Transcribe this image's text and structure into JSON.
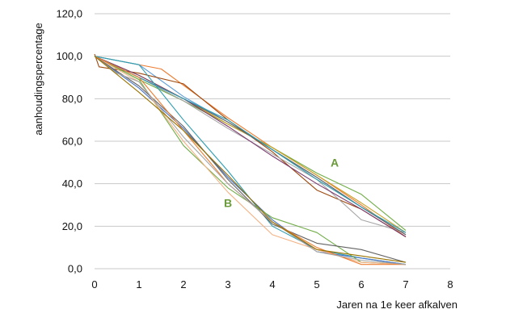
{
  "chart_data": {
    "type": "line",
    "xlabel": "Jaren na 1e keer afkalven",
    "ylabel": "aanhoudingspercentage",
    "xlim": [
      0,
      8
    ],
    "ylim": [
      0,
      120
    ],
    "x_ticks": [
      "0",
      "1",
      "2",
      "3",
      "4",
      "5",
      "6",
      "7",
      "8"
    ],
    "y_ticks": [
      "0,0",
      "20,0",
      "40,0",
      "60,0",
      "80,0",
      "100,0",
      "120,0"
    ],
    "grid": true,
    "legend": "none",
    "colors": {
      "label": "#6a9a3a",
      "palette": [
        "#4472c4",
        "#ed7d31",
        "#a5a5a5",
        "#c9a227",
        "#5b9bd5",
        "#70ad47",
        "#264478",
        "#9e480e",
        "#636363",
        "#997300",
        "#2f9eb0",
        "#7b3a6e",
        "#f4b183",
        "#843c0c"
      ]
    },
    "annotations": [
      {
        "text": "A",
        "x": 5.4,
        "y": 48
      },
      {
        "text": "B",
        "x": 3.0,
        "y": 29
      }
    ],
    "series": [
      {
        "group": "A",
        "color": "#ed7d31",
        "x": [
          0,
          1.5,
          3,
          4,
          5,
          6,
          7
        ],
        "y": [
          100,
          94,
          71,
          57,
          44,
          30,
          15
        ]
      },
      {
        "group": "A",
        "color": "#5b9bd5",
        "x": [
          0,
          1,
          2,
          3,
          4,
          5,
          6,
          7
        ],
        "y": [
          100,
          96,
          81,
          69,
          56,
          43,
          29,
          16
        ]
      },
      {
        "group": "A",
        "color": "#9e480e",
        "x": [
          0,
          0.1,
          1,
          2,
          3,
          4,
          5,
          6,
          7
        ],
        "y": [
          101,
          95,
          92,
          87,
          70,
          55,
          37,
          28,
          15
        ]
      },
      {
        "group": "A",
        "color": "#70ad47",
        "x": [
          0,
          1,
          2,
          3,
          4,
          5,
          6,
          7
        ],
        "y": [
          100,
          89,
          79,
          68,
          57,
          45,
          35,
          18
        ]
      },
      {
        "group": "A",
        "color": "#c9a227",
        "x": [
          0,
          1,
          2,
          3,
          4,
          5,
          6,
          7
        ],
        "y": [
          100,
          91,
          80,
          68,
          57,
          44,
          31,
          17
        ]
      },
      {
        "group": "A",
        "color": "#a5a5a5",
        "x": [
          0,
          1,
          2,
          3,
          4,
          5,
          6,
          7
        ],
        "y": [
          100,
          90,
          79,
          66,
          54,
          42,
          23,
          17
        ]
      },
      {
        "group": "A",
        "color": "#636363",
        "x": [
          0,
          1,
          2,
          3,
          4,
          5,
          6,
          7
        ],
        "y": [
          100,
          90,
          80,
          69,
          56,
          43,
          29,
          16
        ]
      },
      {
        "group": "A",
        "color": "#7b3a6e",
        "x": [
          0,
          1,
          2,
          3,
          4,
          5,
          6,
          7
        ],
        "y": [
          100,
          91,
          80,
          67,
          53,
          40,
          28,
          15
        ]
      },
      {
        "group": "A",
        "color": "#2f9eb0",
        "x": [
          0,
          1,
          2,
          3,
          4,
          5,
          6,
          7
        ],
        "y": [
          100,
          90,
          80,
          70,
          56,
          42,
          29,
          17
        ]
      },
      {
        "group": "B",
        "color": "#2f9eb0",
        "x": [
          0,
          0.5,
          1,
          2,
          3,
          4,
          5,
          6,
          7
        ],
        "y": [
          100,
          98,
          96,
          70,
          46,
          20,
          9,
          5,
          2
        ]
      },
      {
        "group": "B",
        "color": "#4472c4",
        "x": [
          0,
          1,
          2,
          3,
          4,
          5,
          6,
          7
        ],
        "y": [
          100,
          85,
          66,
          43,
          23,
          8,
          5,
          2
        ]
      },
      {
        "group": "B",
        "color": "#70ad47",
        "x": [
          0,
          1,
          2,
          3,
          4,
          5,
          6,
          7
        ],
        "y": [
          100,
          89,
          58,
          38,
          24,
          17,
          3,
          2
        ]
      },
      {
        "group": "B",
        "color": "#f4b183",
        "x": [
          0,
          1,
          2,
          3,
          4,
          5,
          6,
          7
        ],
        "y": [
          100,
          88,
          60,
          36,
          16,
          9,
          3,
          2
        ]
      },
      {
        "group": "B",
        "color": "#636363",
        "x": [
          0,
          1,
          2,
          3,
          4,
          5,
          6,
          7
        ],
        "y": [
          100,
          86,
          67,
          42,
          21,
          12,
          9,
          3
        ]
      },
      {
        "group": "B",
        "color": "#ed7d31",
        "x": [
          0,
          1,
          2,
          3,
          4,
          5,
          6,
          7
        ],
        "y": [
          100,
          90,
          65,
          40,
          22,
          10,
          2,
          2
        ]
      },
      {
        "group": "B",
        "color": "#a5a5a5",
        "x": [
          0,
          0.5,
          1,
          2,
          3,
          4,
          5,
          6,
          7
        ],
        "y": [
          100,
          92,
          88,
          62,
          40,
          22,
          8,
          4,
          2
        ]
      },
      {
        "group": "B",
        "color": "#997300",
        "x": [
          0,
          1,
          2,
          3,
          4,
          5,
          6,
          7
        ],
        "y": [
          100,
          83,
          65,
          44,
          22,
          9,
          6,
          3
        ]
      }
    ]
  }
}
